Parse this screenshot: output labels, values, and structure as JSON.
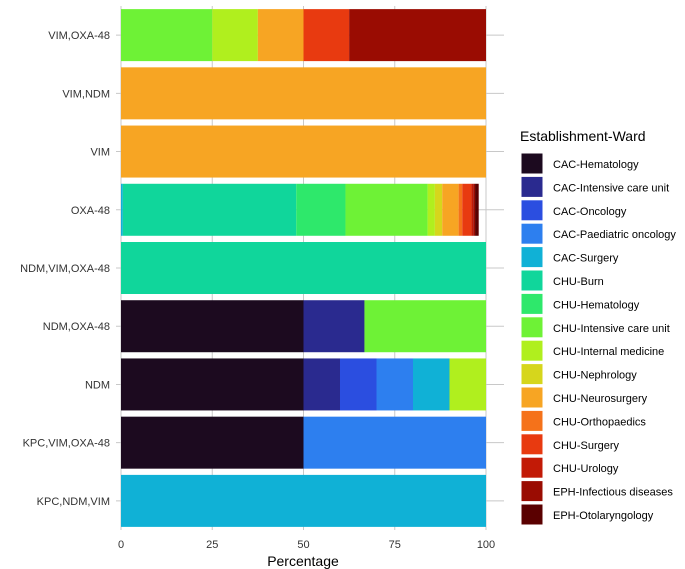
{
  "chart_data": {
    "type": "bar",
    "orientation": "horizontal",
    "stacked": true,
    "xlabel": "Percentage",
    "ylabel": "",
    "xlim": [
      0,
      100
    ],
    "xticks": [
      "0",
      "25",
      "50",
      "75",
      "100"
    ],
    "xtick_values": [
      0,
      25,
      50,
      75,
      100
    ],
    "legend_title": "Establishment-Ward",
    "legend_position": "right",
    "categories": [
      "VIM,OXA-48",
      "VIM,NDM",
      "VIM",
      "OXA-48",
      "NDM,VIM,OXA-48",
      "NDM,OXA-48",
      "NDM",
      "KPC,VIM,OXA-48",
      "KPC,NDM,VIM"
    ],
    "series": [
      {
        "name": "CAC-Hematology",
        "color": "#1c0a1f",
        "values": [
          0,
          0,
          0,
          0,
          0,
          50,
          50,
          50,
          0
        ]
      },
      {
        "name": "CAC-Intensive care unit",
        "color": "#2a2a8f",
        "values": [
          0,
          0,
          0,
          0,
          0,
          16.7,
          10,
          0,
          0
        ]
      },
      {
        "name": "CAC-Oncology",
        "color": "#2b4ee0",
        "values": [
          0,
          0,
          0,
          0,
          0,
          0,
          10,
          0,
          0
        ]
      },
      {
        "name": "CAC-Paediatric oncology",
        "color": "#2d7fef",
        "values": [
          0,
          0,
          0,
          0,
          0,
          0,
          10,
          50,
          0
        ]
      },
      {
        "name": "CAC-Surgery",
        "color": "#10b1d6",
        "values": [
          0,
          0,
          0,
          0.5,
          0,
          0,
          10,
          0,
          100
        ]
      },
      {
        "name": "CHU-Burn",
        "color": "#10d69b",
        "values": [
          0,
          0,
          0,
          47.5,
          100,
          0,
          0,
          0,
          0
        ]
      },
      {
        "name": "CHU-Hematology",
        "color": "#2ee86b",
        "values": [
          0,
          0,
          0,
          13.5,
          0,
          0,
          0,
          0,
          0
        ]
      },
      {
        "name": "CHU-Intensive care unit",
        "color": "#6ef236",
        "values": [
          25,
          0,
          0,
          22.5,
          0,
          33.3,
          0,
          0,
          0
        ]
      },
      {
        "name": "CHU-Internal medicine",
        "color": "#b0ef1e",
        "values": [
          12.5,
          0,
          0,
          2,
          0,
          0,
          10,
          0,
          0
        ]
      },
      {
        "name": "CHU-Nephrology",
        "color": "#d6d61c",
        "values": [
          0,
          0,
          0,
          2,
          0,
          0,
          0,
          0,
          0
        ]
      },
      {
        "name": "CHU-Neurosurgery",
        "color": "#f7a523",
        "values": [
          12.5,
          100,
          100,
          4.5,
          0,
          0,
          0,
          0,
          0
        ]
      },
      {
        "name": "CHU-Orthopaedics",
        "color": "#f5721a",
        "values": [
          0,
          0,
          0,
          1,
          0,
          0,
          0,
          0,
          0
        ]
      },
      {
        "name": "CHU-Surgery",
        "color": "#e83a10",
        "values": [
          12.5,
          0,
          0,
          2.5,
          0,
          0,
          0,
          0,
          0
        ]
      },
      {
        "name": "CHU-Urology",
        "color": "#c21a06",
        "values": [
          0,
          0,
          0,
          0.5,
          0,
          0,
          0,
          0,
          0
        ]
      },
      {
        "name": "EPH-Infectious diseases",
        "color": "#9a0c02",
        "values": [
          37.5,
          0,
          0,
          0.5,
          0,
          0,
          0,
          0,
          0
        ]
      },
      {
        "name": "EPH-Otolaryngology",
        "color": "#5a0000",
        "values": [
          0,
          0,
          0,
          1,
          0,
          0,
          0,
          0,
          0
        ]
      }
    ]
  }
}
